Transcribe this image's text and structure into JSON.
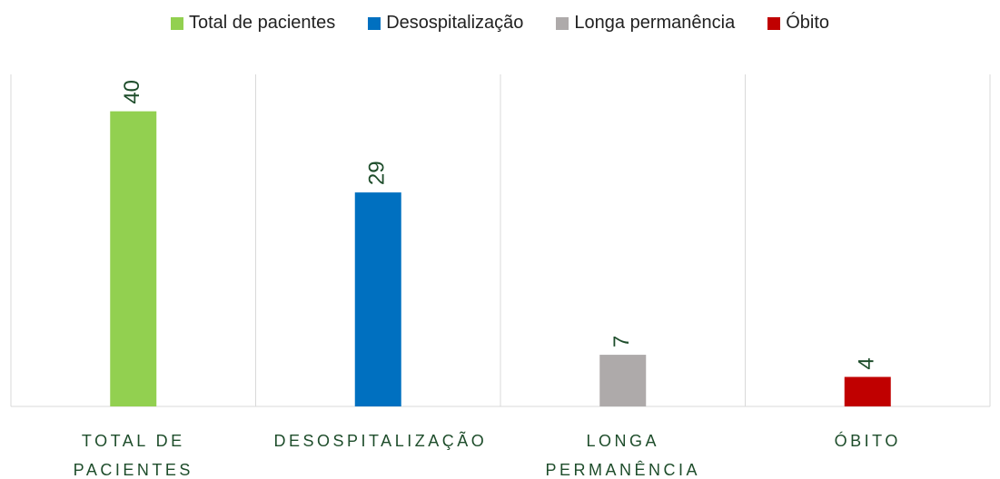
{
  "chart_data": {
    "type": "bar",
    "categories": [
      "TOTAL DE PACIENTES",
      "DESOSPITALIZAÇÃO",
      "LONGA PERMANÊNCIA",
      "ÓBITO"
    ],
    "series": [
      {
        "name": "Total de pacientes",
        "color": "#92d050",
        "values": [
          40,
          null,
          null,
          null
        ]
      },
      {
        "name": "Desospitalização",
        "color": "#0070c0",
        "values": [
          null,
          29,
          null,
          null
        ]
      },
      {
        "name": "Longa permanência",
        "color": "#aeaaaa",
        "values": [
          null,
          null,
          7,
          null
        ]
      },
      {
        "name": "Óbito",
        "color": "#c00000",
        "values": [
          null,
          null,
          null,
          4
        ]
      }
    ],
    "ylim": [
      0,
      45
    ]
  }
}
